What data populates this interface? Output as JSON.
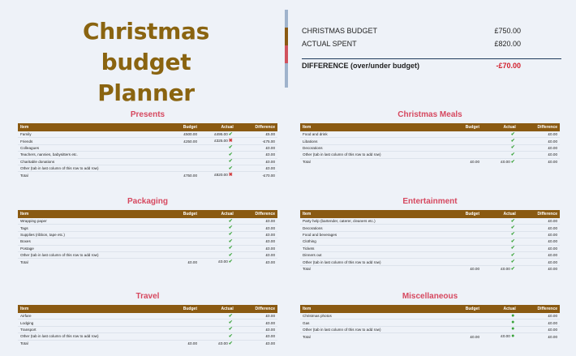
{
  "title": {
    "line1": "Christmas budget",
    "line2": "Planner"
  },
  "summary": {
    "budget_label": "CHRISTMAS BUDGET",
    "budget_value": "£750.00",
    "spent_label": "ACTUAL SPENT",
    "spent_value": "£820.00",
    "diff_label": "DIFFERENCE (over/under budget)",
    "diff_value": "-£70.00"
  },
  "colors": {
    "header": "#8a5a12",
    "section_title": "#d6485f",
    "negative": "#d21e2b"
  },
  "columns": {
    "item": "Item",
    "budget": "Budget",
    "actual": "Actual",
    "difference": "Difference"
  },
  "sections": [
    {
      "title": "Presents",
      "rows": [
        {
          "item": "Family",
          "budget": "£500.00",
          "actual": "£495.00",
          "icon": "check",
          "diff": "£5.00"
        },
        {
          "item": "Friends",
          "budget": "£250.00",
          "actual": "£325.00",
          "icon": "cross",
          "diff": "-£75.00"
        },
        {
          "item": "Colleagues",
          "budget": "",
          "actual": "",
          "icon": "check",
          "diff": "£0.00"
        },
        {
          "item": "Teachers, nannies, babysitters etc.",
          "budget": "",
          "actual": "",
          "icon": "check",
          "diff": "£0.00"
        },
        {
          "item": "Charitable donations",
          "budget": "",
          "actual": "",
          "icon": "check",
          "diff": "£0.00"
        },
        {
          "item": "Other (tab in last column of this row to add row)",
          "budget": "",
          "actual": "",
          "icon": "check",
          "diff": "£0.00"
        }
      ],
      "total": {
        "item": "Total",
        "budget": "£750.00",
        "actual": "£820.00",
        "icon": "cross",
        "diff": "-£70.00"
      }
    },
    {
      "title": "Christmas Meals",
      "rows": [
        {
          "item": "Food and drink",
          "budget": "",
          "actual": "",
          "icon": "check",
          "diff": "£0.00"
        },
        {
          "item": "Libations",
          "budget": "",
          "actual": "",
          "icon": "check",
          "diff": "£0.00"
        },
        {
          "item": "Decorations",
          "budget": "",
          "actual": "",
          "icon": "check",
          "diff": "£0.00"
        },
        {
          "item": "Other (tab in last column of this row to add row)",
          "budget": "",
          "actual": "",
          "icon": "check",
          "diff": "£0.00"
        }
      ],
      "total": {
        "item": "Total",
        "budget": "£0.00",
        "actual": "£0.00",
        "icon": "check",
        "diff": "£0.00"
      }
    },
    {
      "title": "Packaging",
      "rows": [
        {
          "item": "Wrapping paper",
          "budget": "",
          "actual": "",
          "icon": "check",
          "diff": "£0.00"
        },
        {
          "item": "Tags",
          "budget": "",
          "actual": "",
          "icon": "check",
          "diff": "£0.00"
        },
        {
          "item": "Supplies (ribbon, tape etc.)",
          "budget": "",
          "actual": "",
          "icon": "check",
          "diff": "£0.00"
        },
        {
          "item": "Boxes",
          "budget": "",
          "actual": "",
          "icon": "check",
          "diff": "£0.00"
        },
        {
          "item": "Postage",
          "budget": "",
          "actual": "",
          "icon": "check",
          "diff": "£0.00"
        },
        {
          "item": "Other (tab in last column of this row to add row)",
          "budget": "",
          "actual": "",
          "icon": "check",
          "diff": "£0.00"
        }
      ],
      "total": {
        "item": "Total",
        "budget": "£0.00",
        "actual": "£0.00",
        "icon": "check",
        "diff": "£0.00"
      }
    },
    {
      "title": "Entertainment",
      "rows": [
        {
          "item": "Party help (bartender, caterer, cleaners etc.)",
          "budget": "",
          "actual": "",
          "icon": "check",
          "diff": "£0.00"
        },
        {
          "item": "Decorations",
          "budget": "",
          "actual": "",
          "icon": "check",
          "diff": "£0.00"
        },
        {
          "item": "Food and beverages",
          "budget": "",
          "actual": "",
          "icon": "check",
          "diff": "£0.00"
        },
        {
          "item": "Clothing",
          "budget": "",
          "actual": "",
          "icon": "check",
          "diff": "£0.00"
        },
        {
          "item": "Tickets",
          "budget": "",
          "actual": "",
          "icon": "check",
          "diff": "£0.00"
        },
        {
          "item": "Dinners out",
          "budget": "",
          "actual": "",
          "icon": "check",
          "diff": "£0.00"
        },
        {
          "item": "Other (tab in last column of this row to add row)",
          "budget": "",
          "actual": "",
          "icon": "check",
          "diff": "£0.00"
        }
      ],
      "total": {
        "item": "Total",
        "budget": "£0.00",
        "actual": "£0.00",
        "icon": "check",
        "diff": "£0.00"
      }
    },
    {
      "title": "Travel",
      "rows": [
        {
          "item": "Airfare",
          "budget": "",
          "actual": "",
          "icon": "check",
          "diff": "£0.00"
        },
        {
          "item": "Lodging",
          "budget": "",
          "actual": "",
          "icon": "check",
          "diff": "£0.00"
        },
        {
          "item": "Transport",
          "budget": "",
          "actual": "",
          "icon": "check",
          "diff": "£0.00"
        },
        {
          "item": "Other (tab in last column of this row to add row)",
          "budget": "",
          "actual": "",
          "icon": "check",
          "diff": "£0.00"
        }
      ],
      "total": {
        "item": "Total",
        "budget": "£0.00",
        "actual": "£0.00",
        "icon": "check",
        "diff": "£0.00"
      }
    },
    {
      "title": "Miscellaneous",
      "rows": [
        {
          "item": "Christmas photos",
          "budget": "",
          "actual": "",
          "icon": "dot",
          "diff": "£0.00"
        },
        {
          "item": "Gas",
          "budget": "",
          "actual": "",
          "icon": "dot",
          "diff": "£0.00"
        },
        {
          "item": "Other (tab in last column of this row to add row)",
          "budget": "",
          "actual": "",
          "icon": "dot",
          "diff": "£0.00"
        }
      ],
      "total": {
        "item": "Total",
        "budget": "£0.00",
        "actual": "£0.00",
        "icon": "dot",
        "diff": "£0.00"
      }
    }
  ]
}
